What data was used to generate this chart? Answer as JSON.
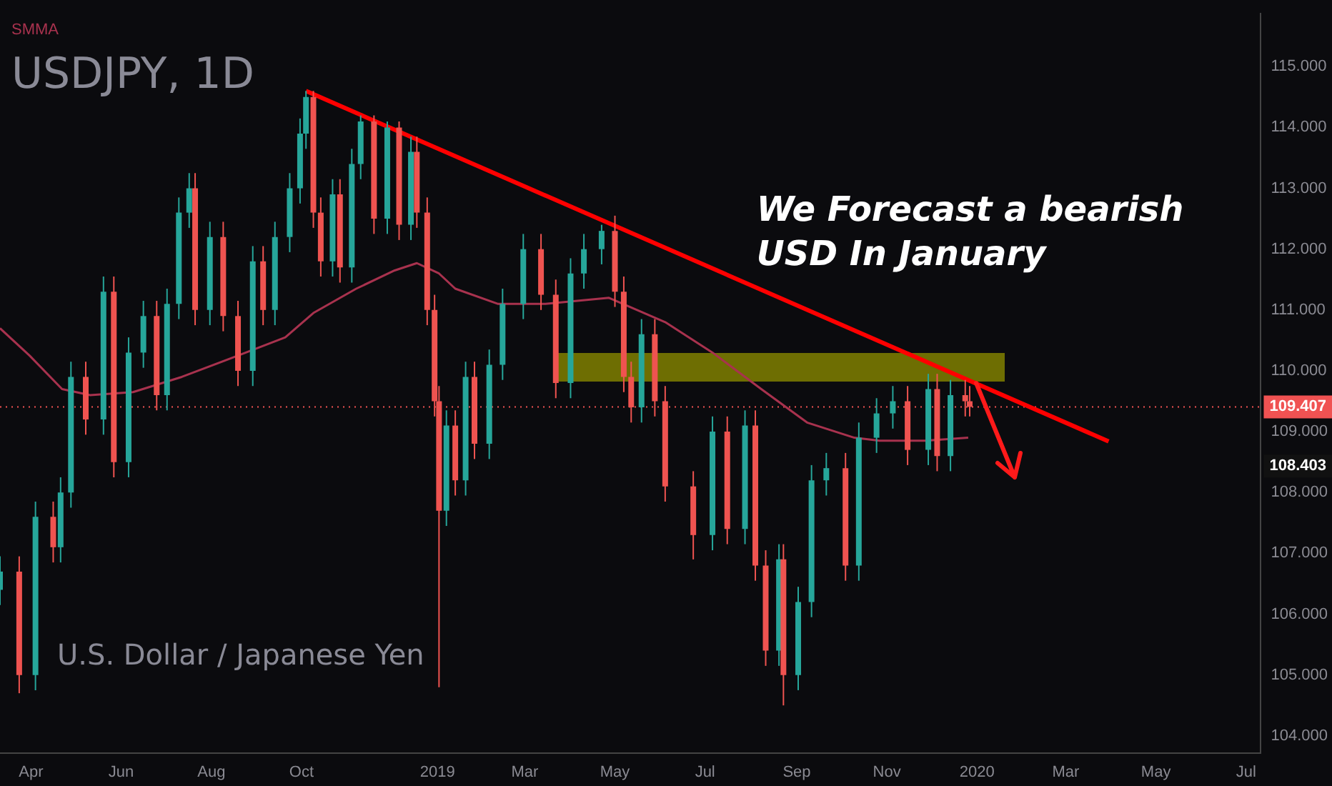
{
  "chart_data": {
    "type": "candlestick",
    "title": "USDJPY, 1D",
    "subtitle": "U.S. Dollar / Japanese Yen",
    "x": [
      "2018-03-11",
      "2018-03-24",
      "2018-04-04",
      "2018-04-16",
      "2018-04-21",
      "2018-04-28",
      "2018-05-08",
      "2018-05-20",
      "2018-05-27",
      "2018-06-06",
      "2018-06-16",
      "2018-06-25",
      "2018-07-02",
      "2018-07-10",
      "2018-07-17",
      "2018-07-21",
      "2018-07-31",
      "2018-08-09",
      "2018-08-19",
      "2018-08-29",
      "2018-09-05",
      "2018-09-13",
      "2018-09-23",
      "2018-09-30",
      "2018-10-04",
      "2018-10-09",
      "2018-10-14",
      "2018-10-22",
      "2018-10-27",
      "2018-11-04",
      "2018-11-10",
      "2018-11-19",
      "2018-11-28",
      "2018-12-06",
      "2018-12-14",
      "2018-12-18",
      "2018-12-25",
      "2018-12-30",
      "2019-01-02",
      "2019-01-07",
      "2019-01-13",
      "2019-01-20",
      "2019-01-26",
      "2019-02-05",
      "2019-02-14",
      "2019-02-28",
      "2019-03-12",
      "2019-03-22",
      "2019-04-01",
      "2019-04-10",
      "2019-04-22",
      "2019-05-01",
      "2019-05-07",
      "2019-05-12",
      "2019-05-19",
      "2019-05-28",
      "2019-06-04",
      "2019-06-23",
      "2019-07-06",
      "2019-07-16",
      "2019-07-28",
      "2019-08-04",
      "2019-08-11",
      "2019-08-20",
      "2019-08-23",
      "2019-09-02",
      "2019-09-11",
      "2019-09-21",
      "2019-10-04",
      "2019-10-13",
      "2019-10-25",
      "2019-11-05",
      "2019-11-15",
      "2019-11-29",
      "2019-12-05",
      "2019-12-14",
      "2019-12-24",
      "2019-12-27"
    ],
    "ohlc": [
      [
        106.4,
        106.95,
        106.15,
        106.7
      ],
      [
        106.7,
        106.95,
        104.7,
        105.0
      ],
      [
        105.0,
        107.85,
        104.75,
        107.6
      ],
      [
        107.6,
        107.85,
        106.85,
        107.1
      ],
      [
        107.1,
        108.25,
        106.85,
        108.0
      ],
      [
        108.0,
        110.15,
        107.75,
        109.9
      ],
      [
        109.9,
        110.15,
        108.95,
        109.2
      ],
      [
        109.2,
        111.55,
        108.95,
        111.3
      ],
      [
        111.3,
        111.55,
        108.25,
        108.5
      ],
      [
        108.5,
        110.55,
        108.25,
        110.3
      ],
      [
        110.3,
        111.15,
        110.05,
        110.9
      ],
      [
        110.9,
        111.15,
        109.35,
        109.6
      ],
      [
        109.6,
        111.35,
        109.35,
        111.1
      ],
      [
        111.1,
        112.85,
        110.85,
        112.6
      ],
      [
        112.6,
        113.25,
        112.35,
        113.0
      ],
      [
        113.0,
        113.25,
        110.75,
        111.0
      ],
      [
        111.0,
        112.45,
        110.75,
        112.2
      ],
      [
        112.2,
        112.45,
        110.65,
        110.9
      ],
      [
        110.9,
        111.15,
        109.75,
        110.0
      ],
      [
        110.0,
        112.05,
        109.75,
        111.8
      ],
      [
        111.8,
        112.05,
        110.75,
        111.0
      ],
      [
        111.0,
        112.45,
        110.75,
        112.2
      ],
      [
        112.2,
        113.25,
        111.95,
        113.0
      ],
      [
        113.0,
        114.15,
        112.75,
        113.9
      ],
      [
        113.9,
        114.6,
        113.65,
        114.5
      ],
      [
        114.5,
        114.6,
        112.35,
        112.6
      ],
      [
        112.6,
        112.85,
        111.55,
        111.8
      ],
      [
        111.8,
        113.15,
        111.55,
        112.9
      ],
      [
        112.9,
        113.15,
        111.45,
        111.7
      ],
      [
        111.7,
        113.65,
        111.45,
        113.4
      ],
      [
        113.4,
        114.2,
        113.15,
        114.1
      ],
      [
        114.1,
        114.2,
        112.25,
        112.5
      ],
      [
        112.5,
        114.1,
        112.25,
        114.0
      ],
      [
        114.0,
        114.1,
        112.15,
        112.4
      ],
      [
        112.4,
        113.85,
        112.15,
        113.6
      ],
      [
        113.6,
        113.85,
        112.35,
        112.6
      ],
      [
        112.6,
        112.85,
        110.75,
        111.0
      ],
      [
        111.0,
        111.25,
        109.25,
        109.5
      ],
      [
        109.5,
        109.75,
        104.8,
        107.7
      ],
      [
        107.7,
        109.35,
        107.45,
        109.1
      ],
      [
        109.1,
        109.35,
        107.95,
        108.2
      ],
      [
        108.2,
        110.15,
        107.95,
        109.9
      ],
      [
        109.9,
        110.15,
        108.55,
        108.8
      ],
      [
        108.8,
        110.35,
        108.55,
        110.1
      ],
      [
        110.1,
        111.35,
        109.85,
        111.1
      ],
      [
        111.1,
        112.25,
        110.85,
        112.0
      ],
      [
        112.0,
        112.25,
        111.0,
        111.25
      ],
      [
        111.25,
        111.5,
        109.55,
        109.8
      ],
      [
        109.8,
        111.85,
        109.55,
        111.6
      ],
      [
        111.6,
        112.25,
        111.35,
        112.0
      ],
      [
        112.0,
        112.4,
        111.75,
        112.3
      ],
      [
        112.3,
        112.55,
        111.05,
        111.3
      ],
      [
        111.3,
        111.55,
        109.65,
        109.9
      ],
      [
        109.9,
        110.15,
        109.15,
        109.4
      ],
      [
        109.4,
        110.85,
        109.15,
        110.6
      ],
      [
        110.6,
        110.85,
        109.25,
        109.5
      ],
      [
        109.5,
        109.75,
        107.85,
        108.1
      ],
      [
        108.1,
        108.35,
        106.9,
        107.3
      ],
      [
        107.3,
        109.25,
        107.05,
        109.0
      ],
      [
        109.0,
        109.25,
        107.15,
        107.4
      ],
      [
        107.4,
        109.35,
        107.15,
        109.1
      ],
      [
        109.1,
        109.35,
        106.55,
        106.8
      ],
      [
        106.8,
        107.05,
        105.15,
        105.4
      ],
      [
        105.4,
        107.15,
        105.15,
        106.9
      ],
      [
        106.9,
        107.15,
        104.5,
        105.0
      ],
      [
        105.0,
        106.45,
        104.75,
        106.2
      ],
      [
        106.2,
        108.45,
        105.95,
        108.2
      ],
      [
        108.2,
        108.65,
        107.95,
        108.4
      ],
      [
        108.4,
        108.65,
        106.55,
        106.8
      ],
      [
        106.8,
        109.15,
        106.55,
        108.9
      ],
      [
        108.9,
        109.55,
        108.65,
        109.3
      ],
      [
        109.3,
        109.75,
        109.05,
        109.5
      ],
      [
        109.5,
        109.75,
        108.45,
        108.7
      ],
      [
        108.7,
        109.95,
        108.45,
        109.7
      ],
      [
        109.7,
        109.95,
        108.35,
        108.6
      ],
      [
        108.6,
        109.85,
        108.35,
        109.6
      ],
      [
        109.6,
        109.85,
        109.25,
        109.5
      ],
      [
        109.5,
        109.75,
        109.25,
        109.407
      ]
    ],
    "colors": [
      "#26a69a",
      "#ef5350",
      "#26a69a",
      "#ef5350",
      "#26a69a",
      "#26a69a",
      "#ef5350",
      "#26a69a",
      "#ef5350",
      "#26a69a",
      "#26a69a",
      "#ef5350",
      "#26a69a",
      "#26a69a",
      "#26a69a",
      "#ef5350",
      "#26a69a",
      "#ef5350",
      "#ef5350",
      "#26a69a",
      "#ef5350",
      "#26a69a",
      "#26a69a",
      "#26a69a",
      "#26a69a",
      "#ef5350",
      "#ef5350",
      "#26a69a",
      "#ef5350",
      "#26a69a",
      "#26a69a",
      "#ef5350",
      "#26a69a",
      "#ef5350",
      "#26a69a",
      "#ef5350",
      "#ef5350",
      "#ef5350",
      "#ef5350",
      "#26a69a",
      "#ef5350",
      "#26a69a",
      "#ef5350",
      "#26a69a",
      "#26a69a",
      "#26a69a",
      "#ef5350",
      "#ef5350",
      "#26a69a",
      "#26a69a",
      "#26a69a",
      "#ef5350",
      "#ef5350",
      "#ef5350",
      "#26a69a",
      "#ef5350",
      "#ef5350",
      "#ef5350",
      "#26a69a",
      "#ef5350",
      "#26a69a",
      "#ef5350",
      "#ef5350",
      "#26a69a",
      "#ef5350",
      "#26a69a",
      "#26a69a",
      "#26a69a",
      "#ef5350",
      "#26a69a",
      "#26a69a",
      "#26a69a",
      "#ef5350",
      "#26a69a",
      "#ef5350",
      "#26a69a",
      "#ef5350",
      "#ef5350"
    ],
    "series": [
      {
        "type": "line",
        "name": "SMMA",
        "color": "#a8324e",
        "x": [
          "2018-03-11",
          "2018-03-31",
          "2018-04-22",
          "2018-05-11",
          "2018-06-09",
          "2018-07-12",
          "2018-08-19",
          "2018-09-20",
          "2018-10-09",
          "2018-11-07",
          "2018-12-03",
          "2018-12-18",
          "2019-01-02",
          "2019-01-13",
          "2019-02-11",
          "2019-03-15",
          "2019-04-27",
          "2019-06-04",
          "2019-07-06",
          "2019-08-08",
          "2019-09-08",
          "2019-10-10",
          "2019-10-27",
          "2019-11-27",
          "2019-12-26"
        ],
        "values": [
          110.7,
          110.25,
          109.7,
          109.6,
          109.65,
          109.9,
          110.25,
          110.55,
          110.95,
          111.35,
          111.65,
          111.77,
          111.6,
          111.35,
          111.1,
          111.1,
          111.2,
          110.8,
          110.3,
          109.7,
          109.15,
          108.9,
          108.85,
          108.85,
          108.9
        ]
      },
      {
        "type": "line",
        "color": "#ff0000",
        "x": [
          "2018-10-04",
          "2020-03-30"
        ],
        "values": [
          114.6,
          108.84
        ]
      }
    ],
    "ref_lines": [
      {
        "axis": "y",
        "value": 109.407,
        "label": "109.407",
        "color": "#f05252",
        "line_style": "dotted"
      }
    ],
    "annotations": [
      "We Forecast a bearish USD In January",
      "108.403"
    ],
    "xlim": [
      "2018-03-11",
      "2020-07-11"
    ],
    "xticks": [
      {
        "value": "2018-04-01",
        "label": "Apr"
      },
      {
        "value": "2018-06-01",
        "label": "Jun"
      },
      {
        "value": "2018-08-01",
        "label": "Aug"
      },
      {
        "value": "2018-10-01",
        "label": "Oct"
      },
      {
        "value": "2019-01-01",
        "label": "2019"
      },
      {
        "value": "2019-03-01",
        "label": "Mar"
      },
      {
        "value": "2019-05-01",
        "label": "May"
      },
      {
        "value": "2019-07-01",
        "label": "Jul"
      },
      {
        "value": "2019-09-01",
        "label": "Sep"
      },
      {
        "value": "2019-11-01",
        "label": "Nov"
      },
      {
        "value": "2020-01-01",
        "label": "2020"
      },
      {
        "value": "2020-03-01",
        "label": "Mar"
      },
      {
        "value": "2020-05-01",
        "label": "May"
      },
      {
        "value": "2020-07-01",
        "label": "Jul"
      }
    ],
    "ylim": [
      103.72,
      115.87
    ],
    "yticks": [
      {
        "value": 104,
        "label": "104.000"
      },
      {
        "value": 105,
        "label": "105.000"
      },
      {
        "value": 106,
        "label": "106.000"
      },
      {
        "value": 107,
        "label": "107.000"
      },
      {
        "value": 108,
        "label": "108.000"
      },
      {
        "value": 109,
        "label": "109.000"
      },
      {
        "value": 110,
        "label": "110.000"
      },
      {
        "value": 111,
        "label": "111.000"
      },
      {
        "value": 112,
        "label": "112.000"
      },
      {
        "value": 113,
        "label": "113.000"
      },
      {
        "value": 114,
        "label": "114.000"
      },
      {
        "value": 115,
        "label": "115.000"
      }
    ],
    "legend": "top left"
  }
}
